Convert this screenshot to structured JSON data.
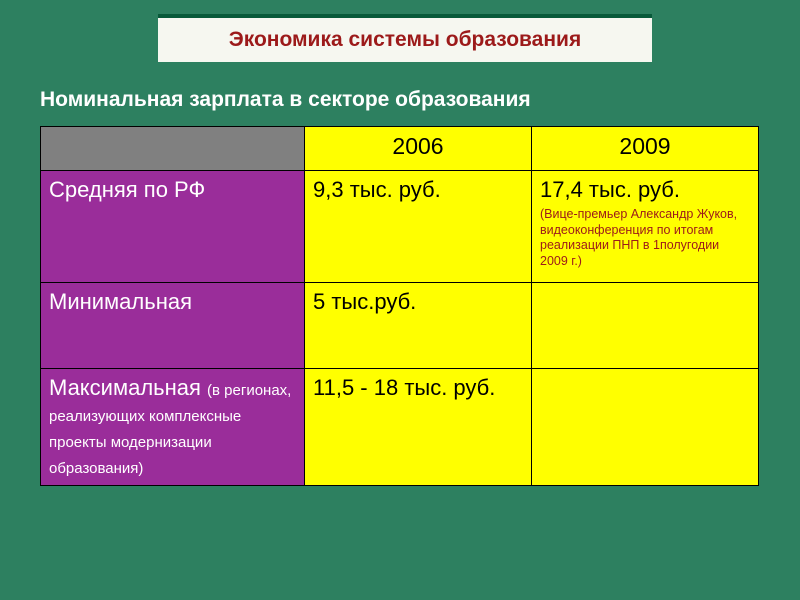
{
  "title": "Экономика системы образования",
  "subtitle": "Номинальная зарплата в секторе образования",
  "columns": {
    "year1": "2006",
    "year2": "2009"
  },
  "rows": [
    {
      "label": "Средняя по РФ",
      "sublabel": "",
      "col1": "9,3 тыс. руб.",
      "col2": "17,4 тыс. руб.",
      "col2_note": "(Вице-премьер Александр Жуков, видеоконференция по итогам реализации ПНП в 1полугодии 2009 г.)"
    },
    {
      "label": "Минимальная",
      "sublabel": "",
      "col1": "5 тыс.руб.",
      "col2": "",
      "col2_note": ""
    },
    {
      "label": "Максимальная ",
      "sublabel": "(в регионах,  реализующих комплексные проекты модернизации образования)",
      "col1": "11,5 - 18 тыс. руб.",
      "col2": "",
      "col2_note": ""
    }
  ],
  "colors": {
    "background": "#2d8060",
    "title_box_bg": "#f6f7f0",
    "title_border": "#085a3a",
    "title_text": "#9c1a1a",
    "subtitle_text": "#ffffff",
    "header_blank_bg": "#808080",
    "header_year_bg": "#ffff00",
    "row_label_bg": "#9a2d9a",
    "row_label_text": "#ffffff",
    "cell_bg": "#ffff00",
    "note_text": "#9c1a1a",
    "cell_border": "#000000"
  }
}
